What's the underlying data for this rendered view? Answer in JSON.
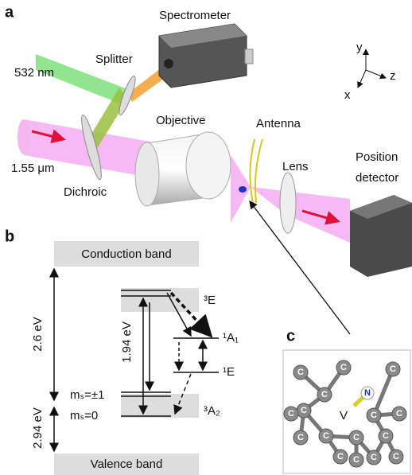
{
  "panel_a": {
    "label": "a",
    "spectrometer": "Spectrometer",
    "splitter": "Splitter",
    "laser_green": "532 nm",
    "laser_ir": "1.55 μm",
    "objective": "Objective",
    "antenna": "Antenna",
    "lens": "Lens",
    "detector": [
      "Position",
      "detector"
    ],
    "dichroic": "Dichroic",
    "axes": {
      "y": "y",
      "z": "z",
      "x": "x"
    }
  },
  "panel_b": {
    "label": "b",
    "conduction_band": "Conduction band",
    "valence_band": "Valence band",
    "energies": {
      "gap": "2.6 eV",
      "zpl": "1.94 eV",
      "valence": "2.94 eV"
    },
    "levels": {
      "e3": "³E",
      "a1": "¹A₁",
      "e1": "¹E",
      "a2": "³A₂",
      "ms1": "mₛ=±1",
      "ms0": "mₛ=0"
    }
  },
  "panel_c": {
    "label": "c",
    "vacancy": "V",
    "nitrogen": "N",
    "atoms": [
      "C",
      "C",
      "C",
      "C",
      "C",
      "C",
      "C",
      "C",
      "C",
      "C",
      "C",
      "C",
      "C",
      "C",
      "C",
      "C"
    ]
  }
}
